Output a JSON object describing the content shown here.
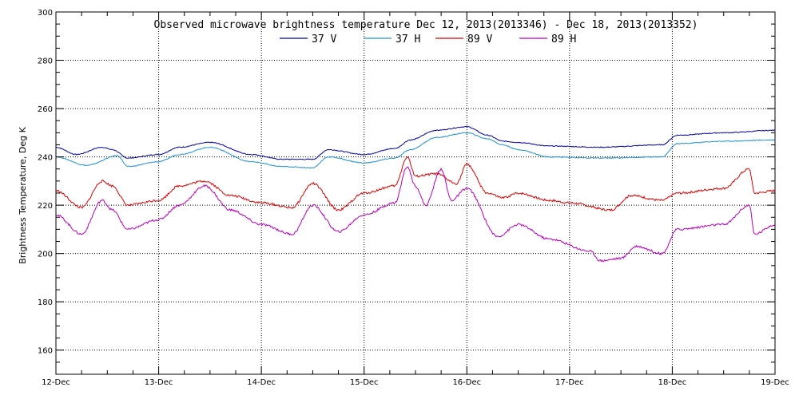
{
  "chart_data": {
    "type": "line",
    "title": "Observed microwave brightness temperature Dec 12, 2013(2013346) - Dec 18, 2013(2013352)",
    "xlabel": "",
    "ylabel": "Brightness Temperature, Deg K",
    "x_ticks": [
      "12-Dec",
      "13-Dec",
      "14-Dec",
      "15-Dec",
      "16-Dec",
      "17-Dec",
      "18-Dec",
      "19-Dec"
    ],
    "xlim": [
      0,
      7
    ],
    "ylim": [
      150,
      300
    ],
    "y_ticks": [
      160,
      180,
      200,
      220,
      240,
      260,
      280,
      300
    ],
    "grid": true,
    "legend_position": "top-center",
    "series": [
      {
        "name": "37 V",
        "color": "#0000aa",
        "x": [
          0,
          0.2,
          0.45,
          0.55,
          0.7,
          1.0,
          1.2,
          1.5,
          1.9,
          2.2,
          2.5,
          2.65,
          3.0,
          3.3,
          3.45,
          3.7,
          4.0,
          4.2,
          4.35,
          4.5,
          4.8,
          5.3,
          5.9,
          6.05,
          6.5,
          7.0
        ],
        "y": [
          244,
          241,
          244,
          243,
          239.5,
          241,
          244,
          246,
          241,
          239,
          239,
          243,
          241,
          243.5,
          247,
          251,
          252.5,
          249,
          246.5,
          246,
          244.5,
          244,
          245,
          249,
          250,
          251
        ]
      },
      {
        "name": "37 H",
        "color": "#1e90d2",
        "x": [
          0,
          0.3,
          0.6,
          0.7,
          1.0,
          1.2,
          1.5,
          1.9,
          2.2,
          2.5,
          2.65,
          3.0,
          3.3,
          3.45,
          3.7,
          4.0,
          4.2,
          4.35,
          4.5,
          4.8,
          5.3,
          5.9,
          6.05,
          6.5,
          7.0
        ],
        "y": [
          240,
          236.5,
          240.5,
          236,
          238,
          241,
          244,
          238,
          236,
          235.5,
          240,
          237.5,
          239.5,
          243,
          248,
          250,
          247.5,
          245,
          243,
          240,
          239.5,
          240,
          245.5,
          246.5,
          247
        ]
      },
      {
        "name": "89 V",
        "color": "#dd0000",
        "x": [
          0,
          0.25,
          0.45,
          0.55,
          0.7,
          1.0,
          1.2,
          1.45,
          1.7,
          2.0,
          2.3,
          2.5,
          2.75,
          3.0,
          3.3,
          3.42,
          3.5,
          3.7,
          3.9,
          4.0,
          4.2,
          4.35,
          4.5,
          4.8,
          5.0,
          5.4,
          5.6,
          5.9,
          6.05,
          6.5,
          6.75,
          6.8,
          7.0
        ],
        "y": [
          226,
          219,
          230,
          228,
          220,
          222,
          228,
          230,
          224,
          221,
          219,
          229,
          218,
          225,
          228,
          240,
          232,
          233,
          229,
          237,
          225,
          223,
          225,
          222,
          221,
          218,
          224,
          222,
          225,
          227,
          235,
          225,
          226
        ]
      },
      {
        "name": "89 H",
        "color": "#bb00bb",
        "x": [
          0,
          0.25,
          0.45,
          0.55,
          0.7,
          1.0,
          1.2,
          1.45,
          1.7,
          2.0,
          2.3,
          2.5,
          2.75,
          3.0,
          3.3,
          3.42,
          3.5,
          3.6,
          3.75,
          3.85,
          4.0,
          4.3,
          4.5,
          4.8,
          5.2,
          5.3,
          5.5,
          5.65,
          5.9,
          6.05,
          6.5,
          6.75,
          6.8,
          7.0
        ],
        "y": [
          216,
          208,
          222,
          218,
          210,
          214,
          220,
          228,
          218,
          212,
          208,
          220,
          209,
          216,
          221,
          236,
          228,
          220,
          235,
          222,
          227,
          207,
          212,
          206,
          201,
          197,
          198,
          203,
          200,
          210,
          212,
          220,
          208,
          212
        ]
      }
    ]
  }
}
